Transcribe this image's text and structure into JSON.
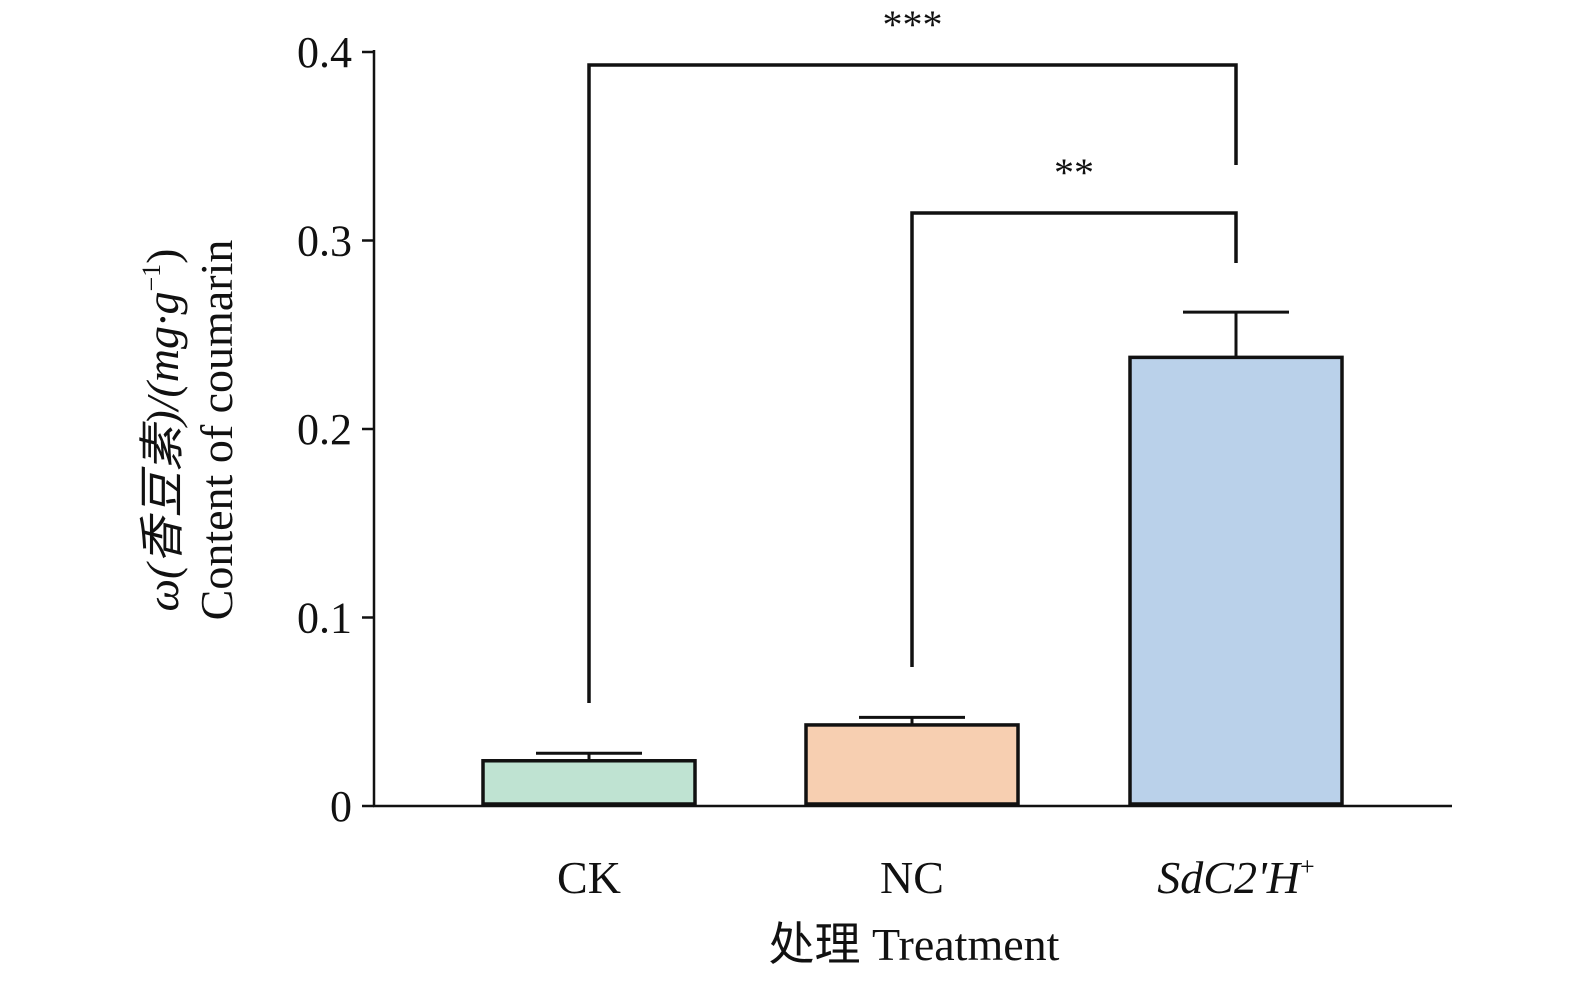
{
  "chart_data": {
    "type": "bar",
    "categories": [
      "CK",
      "NC",
      "SdC2'H+"
    ],
    "values": [
      0.024,
      0.043,
      0.238
    ],
    "errors": [
      0.004,
      0.004,
      0.024
    ],
    "colors": [
      "#bfe3d2",
      "#f7cfb1",
      "#bad1ea"
    ],
    "ylim": [
      0,
      0.4
    ],
    "yticks": [
      0,
      0.1,
      0.2,
      0.3,
      0.4
    ],
    "ytick_labels": [
      "0",
      "0.1",
      "0.2",
      "0.3",
      "0.4"
    ],
    "xlabel": "处理 Treatment",
    "ylabel": {
      "line1_main": "ω(香豆素)/(mg·g",
      "line1_sup": "−1",
      "line1_end": ")",
      "line2": "Content of coumarin"
    },
    "significance": [
      {
        "from": "CK",
        "to": "SdC2'H+",
        "label": "***"
      },
      {
        "from": "NC",
        "to": "SdC2'H+",
        "label": "**"
      }
    ],
    "grid": false
  }
}
